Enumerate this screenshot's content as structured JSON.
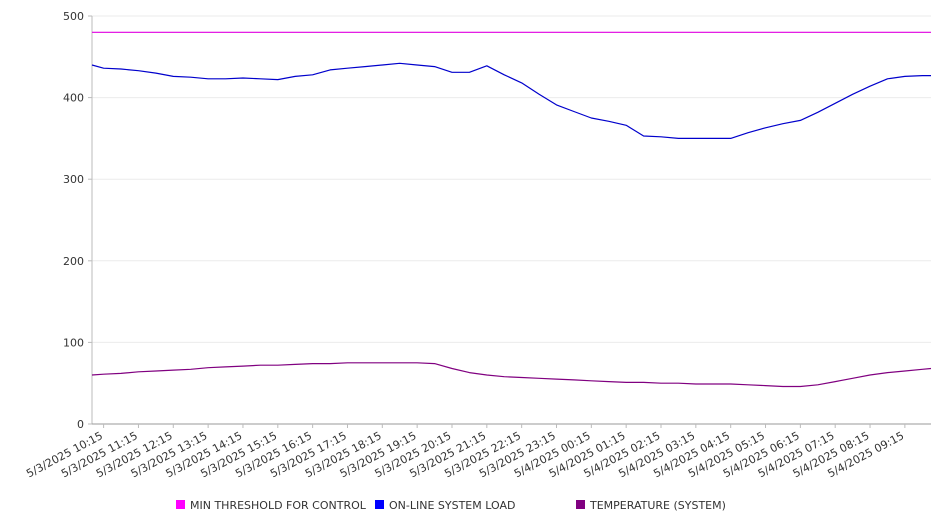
{
  "chart_data": {
    "type": "line",
    "title": "",
    "xlabel": "",
    "ylabel": "",
    "ylim": [
      0,
      500
    ],
    "yticks": [
      0,
      100,
      200,
      300,
      400,
      500
    ],
    "grid": true,
    "legend_placement": "bottom",
    "x_ticks": [
      "5/3/2025 10:15",
      "5/3/2025 11:15",
      "5/3/2025 12:15",
      "5/3/2025 13:15",
      "5/3/2025 14:15",
      "5/3/2025 15:15",
      "5/3/2025 16:15",
      "5/3/2025 17:15",
      "5/3/2025 18:15",
      "5/3/2025 19:15",
      "5/3/2025 20:15",
      "5/3/2025 21:15",
      "5/3/2025 22:15",
      "5/3/2025 23:15",
      "5/4/2025 00:15",
      "5/4/2025 01:15",
      "5/4/2025 02:15",
      "5/4/2025 03:15",
      "5/4/2025 04:15",
      "5/4/2025 05:15",
      "5/4/2025 06:15",
      "5/4/2025 07:15",
      "5/4/2025 08:15",
      "5/4/2025 09:15"
    ],
    "x_start": "5/3/2025 09:55",
    "x_end": "5/4/2025 10:00",
    "series": [
      {
        "name": "MIN THRESHOLD FOR CONTROL",
        "color": "#e000e0",
        "legend_color": "#ff00ff",
        "x": [
          "5/3/2025 09:55",
          "5/4/2025 10:00"
        ],
        "values": [
          480,
          480
        ]
      },
      {
        "name": "ON-LINE SYSTEM LOAD",
        "color": "#0000cc",
        "legend_color": "#0000ff",
        "x": [
          "5/3/2025 09:55",
          "5/3/2025 10:15",
          "5/3/2025 10:45",
          "5/3/2025 11:15",
          "5/3/2025 11:45",
          "5/3/2025 12:15",
          "5/3/2025 12:45",
          "5/3/2025 13:15",
          "5/3/2025 13:45",
          "5/3/2025 14:15",
          "5/3/2025 14:45",
          "5/3/2025 15:15",
          "5/3/2025 15:45",
          "5/3/2025 16:15",
          "5/3/2025 16:45",
          "5/3/2025 17:15",
          "5/3/2025 17:45",
          "5/3/2025 18:15",
          "5/3/2025 18:45",
          "5/3/2025 19:15",
          "5/3/2025 19:45",
          "5/3/2025 20:15",
          "5/3/2025 20:45",
          "5/3/2025 21:15",
          "5/3/2025 21:45",
          "5/3/2025 22:15",
          "5/3/2025 22:45",
          "5/3/2025 23:15",
          "5/3/2025 23:45",
          "5/4/2025 00:15",
          "5/4/2025 00:45",
          "5/4/2025 01:15",
          "5/4/2025 01:45",
          "5/4/2025 02:15",
          "5/4/2025 02:45",
          "5/4/2025 03:15",
          "5/4/2025 03:45",
          "5/4/2025 04:15",
          "5/4/2025 04:45",
          "5/4/2025 05:15",
          "5/4/2025 05:45",
          "5/4/2025 06:15",
          "5/4/2025 06:45",
          "5/4/2025 07:15",
          "5/4/2025 07:45",
          "5/4/2025 08:15",
          "5/4/2025 08:45",
          "5/4/2025 09:15",
          "5/4/2025 09:45",
          "5/4/2025 10:00"
        ],
        "values": [
          440,
          436,
          435,
          433,
          430,
          426,
          425,
          423,
          423,
          424,
          423,
          422,
          426,
          428,
          434,
          436,
          438,
          440,
          442,
          440,
          438,
          431,
          431,
          439,
          428,
          418,
          404,
          391,
          383,
          375,
          371,
          366,
          353,
          352,
          350,
          350,
          350,
          350,
          357,
          363,
          368,
          372,
          382,
          393,
          404,
          414,
          423,
          426,
          427,
          427
        ]
      },
      {
        "name": "TEMPERATURE (SYSTEM)",
        "color": "#800080",
        "legend_color": "#800080",
        "x": [
          "5/3/2025 09:55",
          "5/3/2025 10:15",
          "5/3/2025 10:45",
          "5/3/2025 11:15",
          "5/3/2025 11:45",
          "5/3/2025 12:15",
          "5/3/2025 12:45",
          "5/3/2025 13:15",
          "5/3/2025 13:45",
          "5/3/2025 14:15",
          "5/3/2025 14:45",
          "5/3/2025 15:15",
          "5/3/2025 15:45",
          "5/3/2025 16:15",
          "5/3/2025 16:45",
          "5/3/2025 17:15",
          "5/3/2025 17:45",
          "5/3/2025 18:15",
          "5/3/2025 18:45",
          "5/3/2025 19:15",
          "5/3/2025 19:45",
          "5/3/2025 20:15",
          "5/3/2025 20:45",
          "5/3/2025 21:15",
          "5/3/2025 21:45",
          "5/3/2025 22:15",
          "5/3/2025 22:45",
          "5/3/2025 23:15",
          "5/3/2025 23:45",
          "5/4/2025 00:15",
          "5/4/2025 00:45",
          "5/4/2025 01:15",
          "5/4/2025 01:45",
          "5/4/2025 02:15",
          "5/4/2025 02:45",
          "5/4/2025 03:15",
          "5/4/2025 03:45",
          "5/4/2025 04:15",
          "5/4/2025 04:45",
          "5/4/2025 05:15",
          "5/4/2025 05:45",
          "5/4/2025 06:15",
          "5/4/2025 06:45",
          "5/4/2025 07:15",
          "5/4/2025 07:45",
          "5/4/2025 08:15",
          "5/4/2025 08:45",
          "5/4/2025 09:15",
          "5/4/2025 09:45",
          "5/4/2025 10:00"
        ],
        "values": [
          60,
          61,
          62,
          64,
          65,
          66,
          67,
          69,
          70,
          71,
          72,
          72,
          73,
          74,
          74,
          75,
          75,
          75,
          75,
          75,
          74,
          68,
          63,
          60,
          58,
          57,
          56,
          55,
          54,
          53,
          52,
          51,
          51,
          50,
          50,
          49,
          49,
          49,
          48,
          47,
          46,
          46,
          48,
          52,
          56,
          60,
          63,
          65,
          67,
          68
        ]
      }
    ]
  }
}
